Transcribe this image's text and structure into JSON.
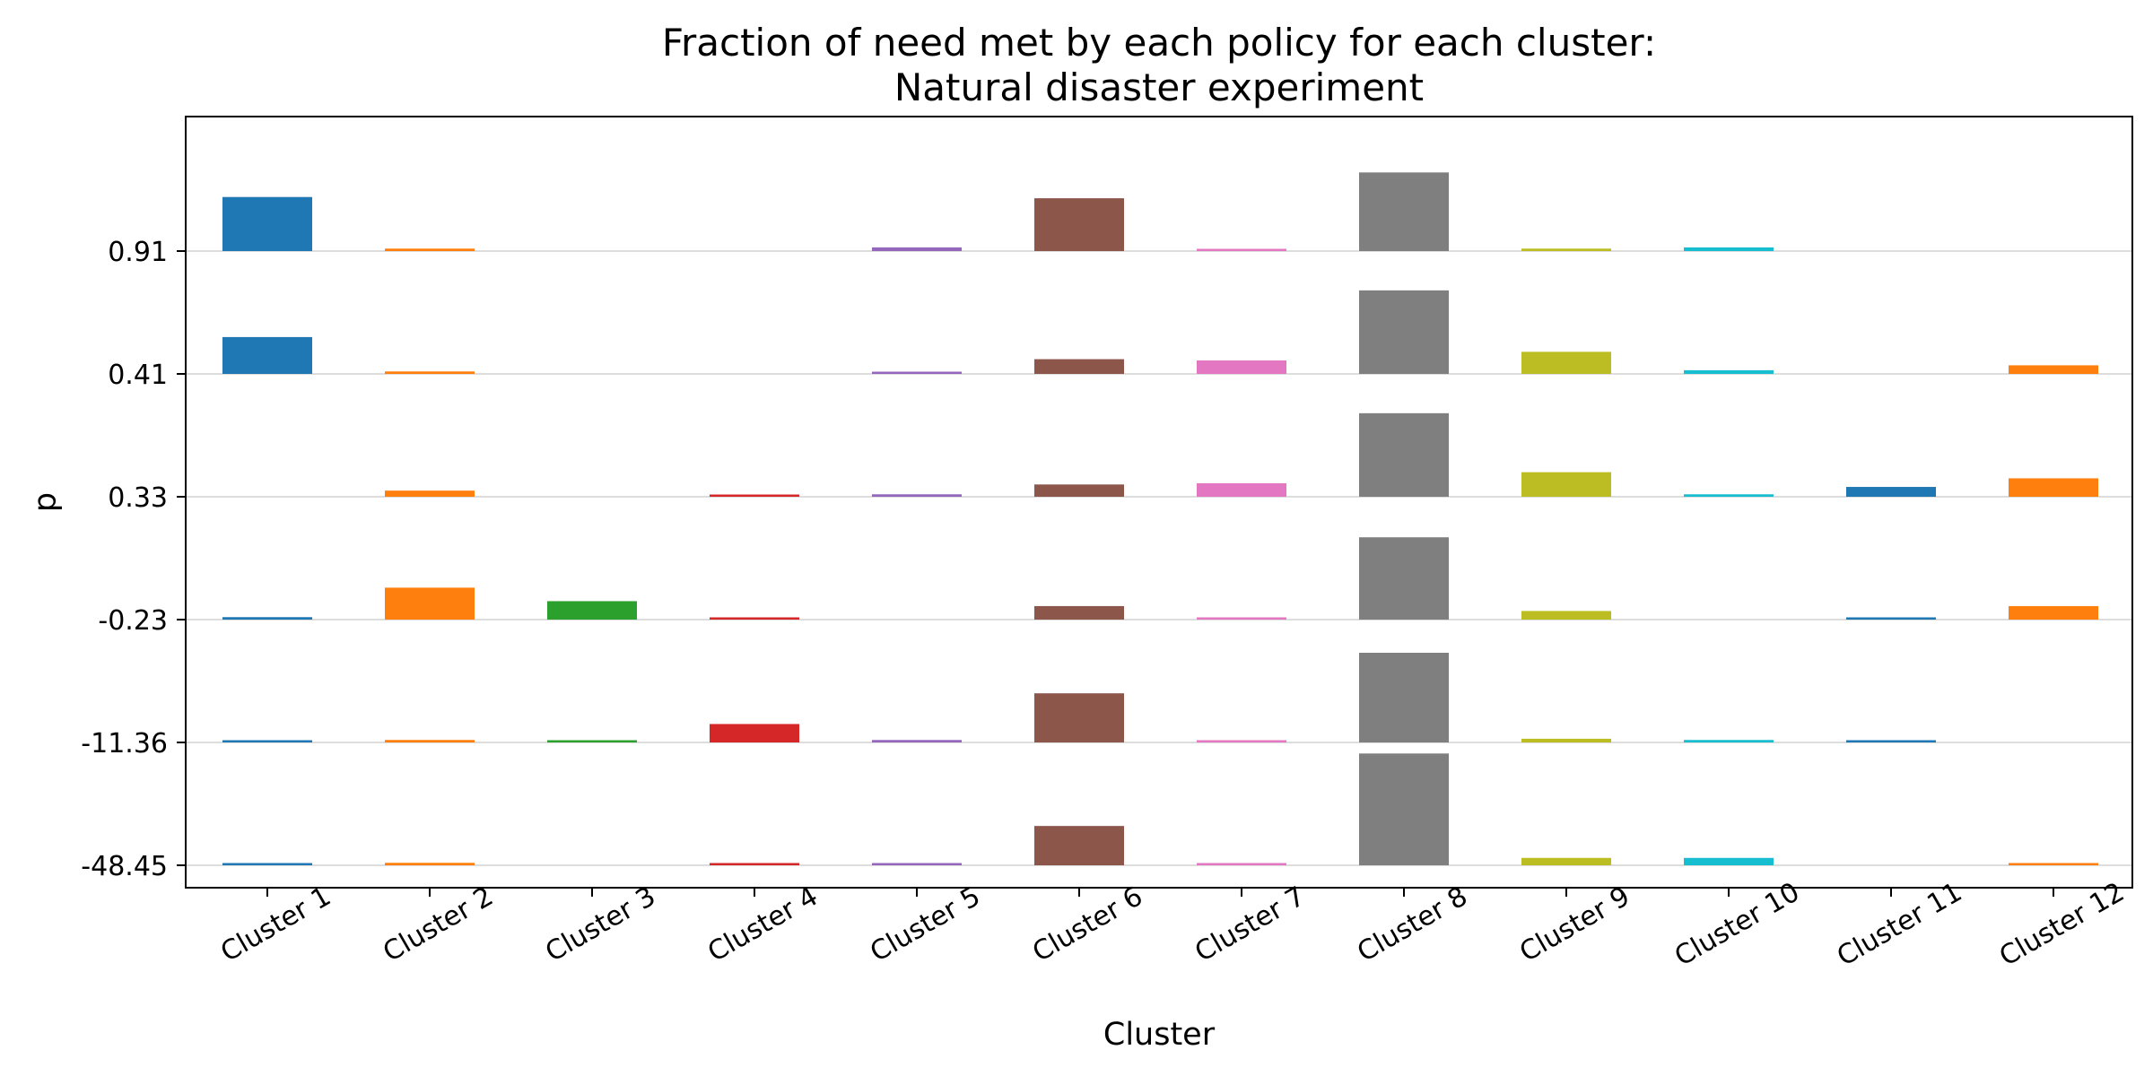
{
  "chart_data": {
    "type": "bar",
    "title_lines": [
      "Fraction of need met by each policy for each cluster:",
      "Natural disaster experiment"
    ],
    "xlabel": "Cluster",
    "ylabel": "p",
    "categories": [
      "Cluster 1",
      "Cluster 2",
      "Cluster 3",
      "Cluster 4",
      "Cluster 5",
      "Cluster 6",
      "Cluster 7",
      "Cluster 8",
      "Cluster 9",
      "Cluster 10",
      "Cluster 11",
      "Cluster 12"
    ],
    "row_labels": [
      "0.91",
      "0.41",
      "0.33",
      "-0.23",
      "-11.36",
      "-48.45"
    ],
    "colors": [
      "#1f77b4",
      "#ff7f0e",
      "#2ca02c",
      "#d62728",
      "#9467bd",
      "#8c564b",
      "#e377c2",
      "#7f7f7f",
      "#bcbd22",
      "#17becf",
      "#1f77b4",
      "#ff7f0e"
    ],
    "grid": true,
    "legend": "none",
    "row_unit": "fraction of row band (bar height)",
    "values": [
      [
        0.44,
        0.02,
        0.0,
        0.0,
        0.03,
        0.43,
        0.01,
        0.64,
        0.02,
        0.03,
        0.0,
        0.0
      ],
      [
        0.3,
        0.02,
        0.0,
        0.0,
        0.01,
        0.12,
        0.11,
        0.68,
        0.18,
        0.03,
        0.0,
        0.07
      ],
      [
        0.0,
        0.05,
        0.0,
        0.01,
        0.02,
        0.1,
        0.11,
        0.68,
        0.2,
        0.02,
        0.08,
        0.15
      ],
      [
        0.02,
        0.26,
        0.15,
        0.01,
        0.0,
        0.11,
        0.01,
        0.67,
        0.07,
        0.0,
        0.01,
        0.11
      ],
      [
        0.01,
        0.02,
        0.01,
        0.15,
        0.02,
        0.4,
        0.01,
        0.73,
        0.03,
        0.02,
        0.01,
        0.0
      ],
      [
        0.01,
        0.02,
        0.0,
        0.01,
        0.01,
        0.32,
        0.01,
        0.91,
        0.06,
        0.06,
        0.0,
        0.01
      ]
    ]
  }
}
